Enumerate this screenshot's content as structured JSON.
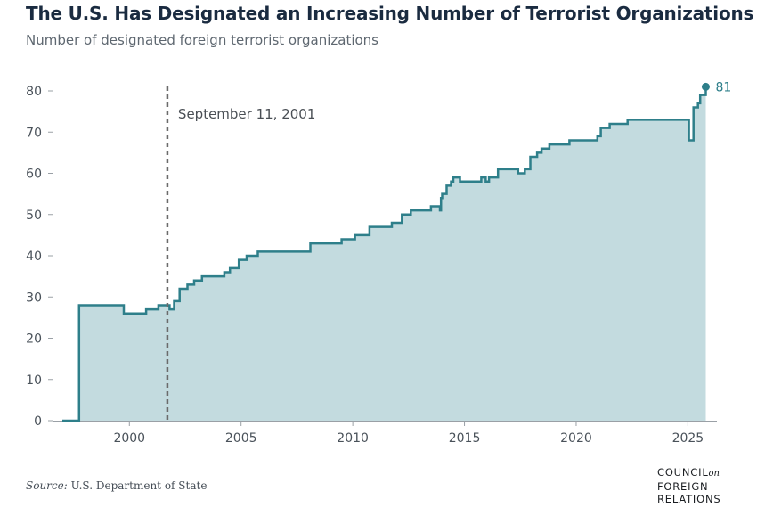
{
  "header": {
    "title": "The U.S. Has Designated an Increasing Number of Terrorist Organizations",
    "subtitle": "Number of designated foreign terrorist organizations"
  },
  "footer": {
    "source_label": "Source:",
    "source_text": "U.S. Department of State",
    "logo_lines": [
      "COUNCIL",
      "FOREIGN",
      "RELATIONS"
    ],
    "logo_on": "on"
  },
  "colors": {
    "line": "#2e7f8a",
    "fill": "#c3dbdf",
    "annotation": "#6b6b6b",
    "axis": "#9aa0a6"
  },
  "chart_data": {
    "type": "area",
    "title": "The U.S. Has Designated an Increasing Number of Terrorist Organizations",
    "subtitle": "Number of designated foreign terrorist organizations",
    "xlabel": "",
    "ylabel": "",
    "xlim": [
      1996.6,
      2026.3
    ],
    "ylim": [
      0,
      80
    ],
    "x_ticks": [
      2000,
      2005,
      2010,
      2015,
      2020,
      2025
    ],
    "y_ticks": [
      0,
      10,
      20,
      30,
      40,
      50,
      60,
      70,
      80
    ],
    "grid": false,
    "step": true,
    "annotation": {
      "x": 2001.7,
      "label": "September 11, 2001"
    },
    "end_label": "81",
    "series": [
      {
        "x": [
          1997.0,
          1997.75,
          1999.75,
          2000.75,
          2001.3,
          2001.8,
          2002.0,
          2002.25,
          2002.6,
          2002.9,
          2003.25,
          2004.25,
          2004.5,
          2004.9,
          2005.25,
          2005.75,
          2008.1,
          2009.5,
          2010.1,
          2010.75,
          2011.0,
          2011.75,
          2012.2,
          2012.6,
          2013.5,
          2013.9,
          2013.95,
          2014.0,
          2014.2,
          2014.4,
          2014.5,
          2014.8,
          2015.75,
          2015.95,
          2016.1,
          2016.5,
          2017.4,
          2017.7,
          2017.95,
          2018.25,
          2018.45,
          2018.55,
          2018.8,
          2019.7,
          2020.95,
          2021.1,
          2021.5,
          2022.3,
          2025.05,
          2025.25,
          2025.45,
          2025.55,
          2025.8
        ],
        "y": [
          0,
          28,
          26,
          27,
          28,
          27,
          29,
          32,
          33,
          34,
          35,
          36,
          37,
          39,
          40,
          41,
          43,
          44,
          45,
          47,
          47,
          48,
          50,
          51,
          52,
          51,
          54,
          55,
          57,
          58,
          59,
          58,
          59,
          58,
          59,
          61,
          60,
          61,
          64,
          65,
          66,
          66,
          67,
          68,
          69,
          71,
          72,
          73,
          68,
          76,
          77,
          79,
          81
        ]
      }
    ]
  }
}
